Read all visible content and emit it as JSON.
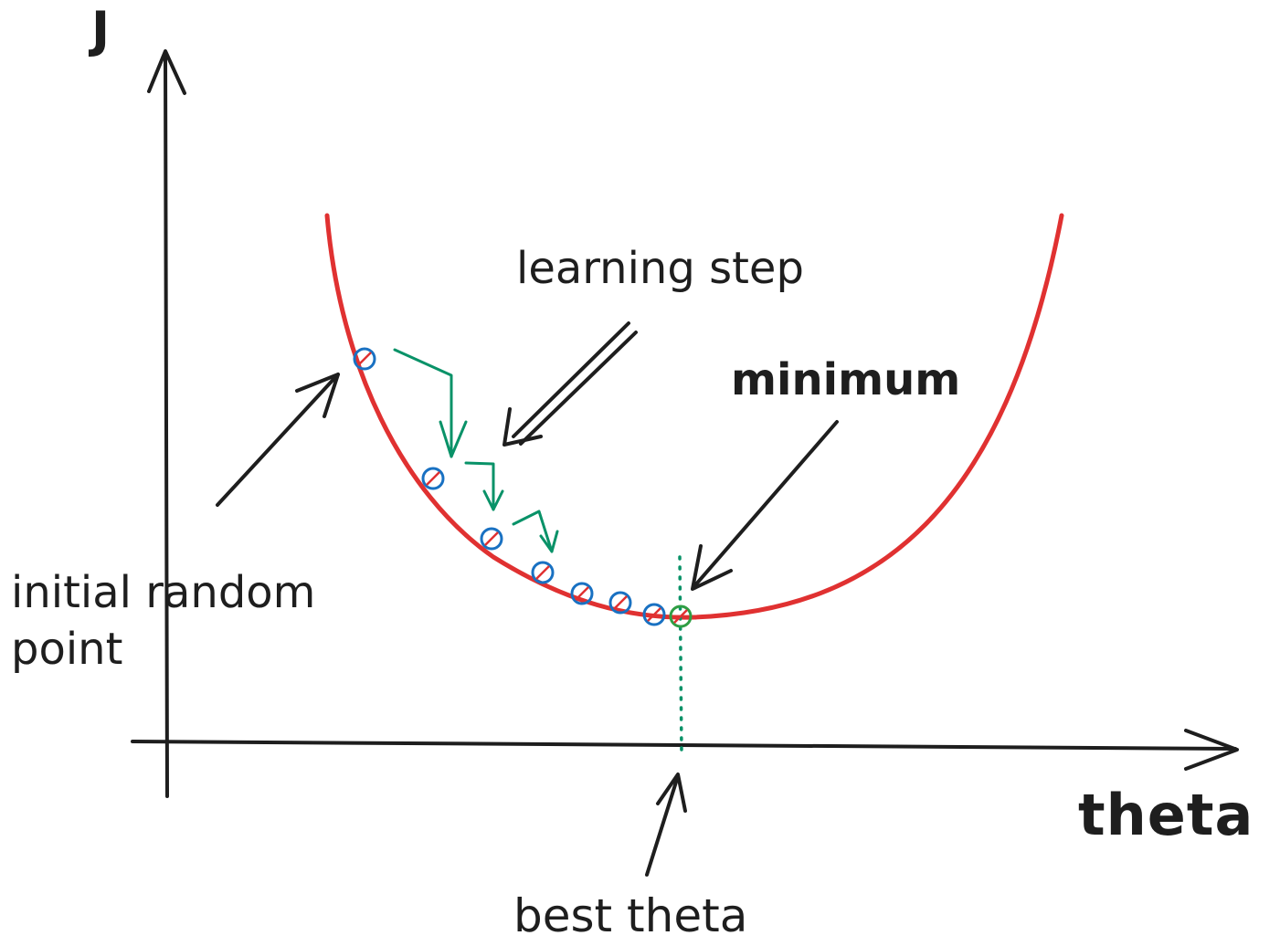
{
  "axes": {
    "y_label": "J",
    "x_label": "theta"
  },
  "annotations": {
    "learning_step": "learning step",
    "minimum": "minimum",
    "initial_point": "initial random point",
    "best_theta": "best theta"
  },
  "colors": {
    "ink": "#1e1e1e",
    "curve": "#e03131",
    "points": "#1971c2",
    "steps": "#099268",
    "minimum_marker": "#2f9e44"
  }
}
